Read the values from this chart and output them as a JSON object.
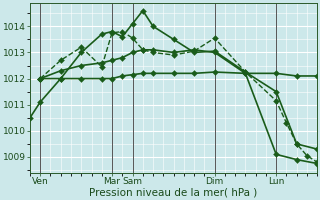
{
  "bg_color": "#cce8ea",
  "grid_color": "#ffffff",
  "line_color": "#1a5c1a",
  "ylim": [
    1008.4,
    1014.9
  ],
  "xlim": [
    0,
    28
  ],
  "xtick_positions": [
    1,
    8,
    10,
    18,
    24
  ],
  "xtick_labels": [
    "Ven",
    "Mar",
    "Sam",
    "Dim",
    "Lun"
  ],
  "ytick_positions": [
    1009,
    1010,
    1011,
    1012,
    1013,
    1014
  ],
  "xlabel": "Pression niveau de la mer( hPa )",
  "vlines": [
    1,
    8,
    10,
    18,
    24
  ],
  "vline_color": "#555555",
  "lines": [
    {
      "x": [
        0,
        1,
        3,
        5,
        7,
        8,
        9,
        10,
        11,
        12,
        14,
        16,
        18,
        21,
        24,
        26,
        28
      ],
      "y": [
        1010.5,
        1011.1,
        1012.0,
        1013.0,
        1013.7,
        1013.8,
        1013.6,
        1014.1,
        1014.6,
        1014.0,
        1013.5,
        1013.0,
        1013.05,
        1012.25,
        1011.5,
        1009.5,
        1009.3
      ],
      "ls": "-",
      "lw": 1.2,
      "ms": 3
    },
    {
      "x": [
        1,
        3,
        5,
        7,
        8,
        9,
        10,
        11,
        12,
        14,
        16,
        18,
        21,
        24,
        26,
        28
      ],
      "y": [
        1012.0,
        1012.0,
        1012.0,
        1012.0,
        1012.0,
        1012.1,
        1012.15,
        1012.2,
        1012.2,
        1012.2,
        1012.2,
        1012.25,
        1012.2,
        1012.2,
        1012.1,
        1012.1
      ],
      "ls": "-",
      "lw": 1.2,
      "ms": 3
    },
    {
      "x": [
        1,
        3,
        5,
        7,
        8,
        9,
        10,
        11,
        12,
        14,
        16,
        18,
        21,
        24,
        26,
        28
      ],
      "y": [
        1012.0,
        1012.3,
        1012.5,
        1012.6,
        1012.7,
        1012.8,
        1013.0,
        1013.1,
        1013.1,
        1013.0,
        1013.1,
        1013.0,
        1012.2,
        1009.1,
        1008.9,
        1008.75
      ],
      "ls": "-",
      "lw": 1.2,
      "ms": 3
    },
    {
      "x": [
        1,
        3,
        5,
        7,
        8,
        9,
        10,
        11,
        12,
        14,
        16,
        18,
        21,
        24,
        25,
        26,
        27,
        28
      ],
      "y": [
        1012.0,
        1012.7,
        1013.2,
        1012.45,
        1013.75,
        1013.8,
        1013.55,
        1013.1,
        1013.0,
        1012.9,
        1013.05,
        1013.55,
        1012.25,
        1011.15,
        1010.3,
        1009.5,
        1009.05,
        1008.8
      ],
      "ls": "--",
      "lw": 1.0,
      "ms": 3
    }
  ]
}
